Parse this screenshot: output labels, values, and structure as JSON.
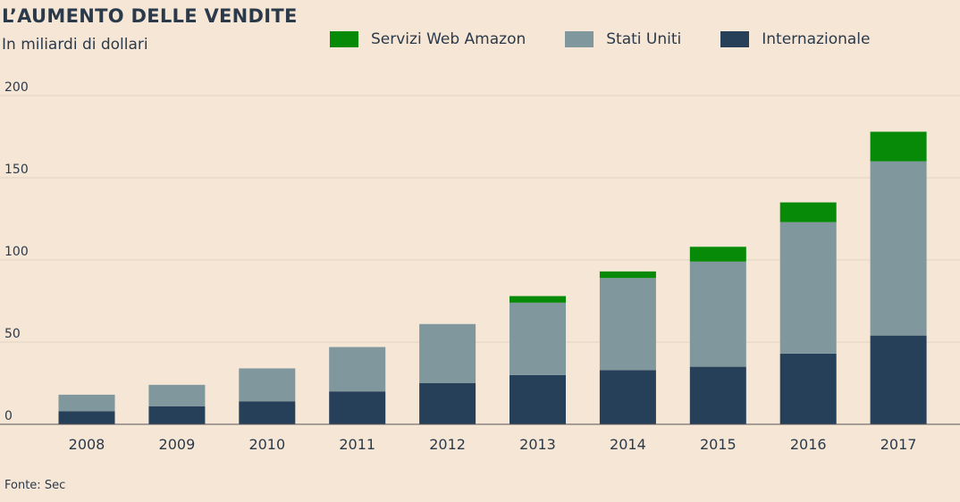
{
  "chart_data": {
    "type": "bar",
    "stacked": true,
    "title": "L’AUMENTO DELLE VENDITE",
    "subtitle": "In miliardi di dollari",
    "categories": [
      "2008",
      "2009",
      "2010",
      "2011",
      "2012",
      "2013",
      "2014",
      "2015",
      "2016",
      "2017"
    ],
    "series": [
      {
        "name": "Internazionale",
        "color": "#26405a",
        "values": [
          8,
          11,
          14,
          20,
          25,
          30,
          33,
          35,
          43,
          54
        ]
      },
      {
        "name": "Stati Uniti",
        "color": "#7f979d",
        "values": [
          10,
          13,
          20,
          27,
          36,
          44,
          56,
          64,
          80,
          106
        ]
      },
      {
        "name": "Servizi Web Amazon",
        "color": "#078a07",
        "values": [
          0,
          0,
          0,
          0,
          0,
          4,
          4,
          9,
          12,
          18
        ]
      }
    ],
    "legend_order": [
      "Servizi Web Amazon",
      "Stati Uniti",
      "Internazionale"
    ],
    "yticks": [
      0,
      50,
      100,
      150,
      200
    ],
    "ylim": [
      0,
      200
    ],
    "grid": true,
    "legend_position": "top"
  },
  "footer": {
    "source": "Fonte: Sec"
  }
}
